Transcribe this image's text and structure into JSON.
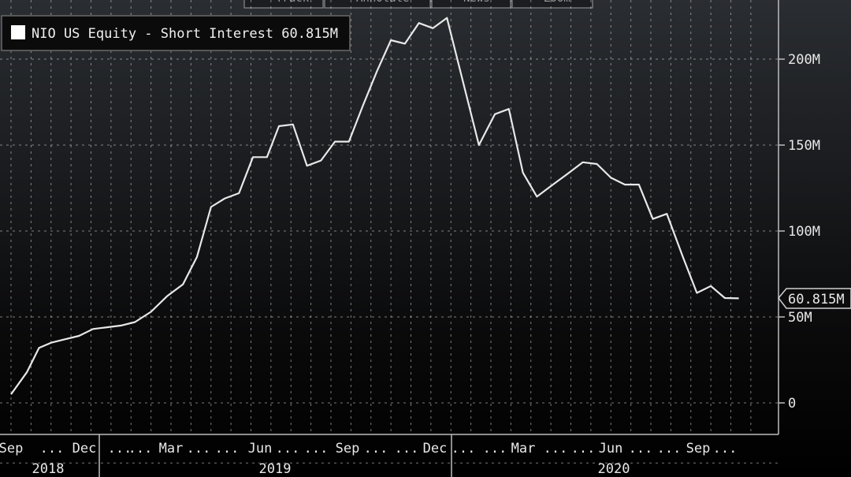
{
  "toolbar": {
    "items": [
      "Track",
      "Annotate",
      "News",
      "Zoom"
    ]
  },
  "chart_data": {
    "type": "line",
    "title": "",
    "xlabel": "",
    "ylabel": "",
    "legend": {
      "label": "NIO US Equity - Short Interest 60.815M",
      "placement": "top-left"
    },
    "last_value_label": "60.815M",
    "ylim": [
      -18,
      235
    ],
    "y_ticks": [
      {
        "value": 0,
        "label": "0"
      },
      {
        "value": 50,
        "label": "50M"
      },
      {
        "value": 100,
        "label": "100M"
      },
      {
        "value": 150,
        "label": "150M"
      },
      {
        "value": 200,
        "label": "200M"
      }
    ],
    "grid": true,
    "x_tick_labels": [
      "Sep",
      "...",
      "Dec",
      "...",
      "...",
      "Mar",
      "...",
      "...",
      "Jun",
      "...",
      "...",
      "Sep",
      "...",
      "...",
      "Dec",
      "...",
      "...",
      "Mar",
      "...",
      "...",
      "Jun",
      "...",
      "...",
      "Sep",
      "..."
    ],
    "year_labels": [
      "2018",
      "2019",
      "2020"
    ],
    "series": [
      {
        "name": "NIO US Equity - Short Interest",
        "color": "#e8e8e8",
        "points": [
          [
            0.0,
            5
          ],
          [
            0.8,
            18
          ],
          [
            1.4,
            32
          ],
          [
            2.0,
            35
          ],
          [
            2.7,
            37
          ],
          [
            3.4,
            39
          ],
          [
            4.1,
            43
          ],
          [
            4.8,
            44
          ],
          [
            5.5,
            45
          ],
          [
            6.2,
            47
          ],
          [
            7.0,
            53
          ],
          [
            7.8,
            62
          ],
          [
            8.6,
            69
          ],
          [
            9.3,
            85
          ],
          [
            10.0,
            114
          ],
          [
            10.7,
            119
          ],
          [
            11.4,
            122
          ],
          [
            12.1,
            143
          ],
          [
            12.8,
            143
          ],
          [
            13.4,
            161
          ],
          [
            14.1,
            162
          ],
          [
            14.8,
            138
          ],
          [
            15.5,
            141
          ],
          [
            16.2,
            152
          ],
          [
            16.9,
            152
          ],
          [
            17.6,
            173
          ],
          [
            18.3,
            193
          ],
          [
            19.0,
            211
          ],
          [
            19.7,
            209
          ],
          [
            20.4,
            221
          ],
          [
            21.1,
            218
          ],
          [
            21.8,
            224
          ],
          [
            23.4,
            150
          ],
          [
            24.2,
            168
          ],
          [
            24.9,
            171
          ],
          [
            25.6,
            134
          ],
          [
            26.3,
            120
          ],
          [
            27.1,
            127
          ],
          [
            27.8,
            133
          ],
          [
            28.6,
            140
          ],
          [
            29.3,
            139
          ],
          [
            30.0,
            131
          ],
          [
            30.7,
            127
          ],
          [
            31.4,
            127
          ],
          [
            32.1,
            107
          ],
          [
            32.8,
            110
          ],
          [
            33.6,
            85
          ],
          [
            34.3,
            64
          ],
          [
            35.0,
            68
          ],
          [
            35.7,
            61
          ],
          [
            36.4,
            60.815
          ]
        ]
      }
    ]
  }
}
